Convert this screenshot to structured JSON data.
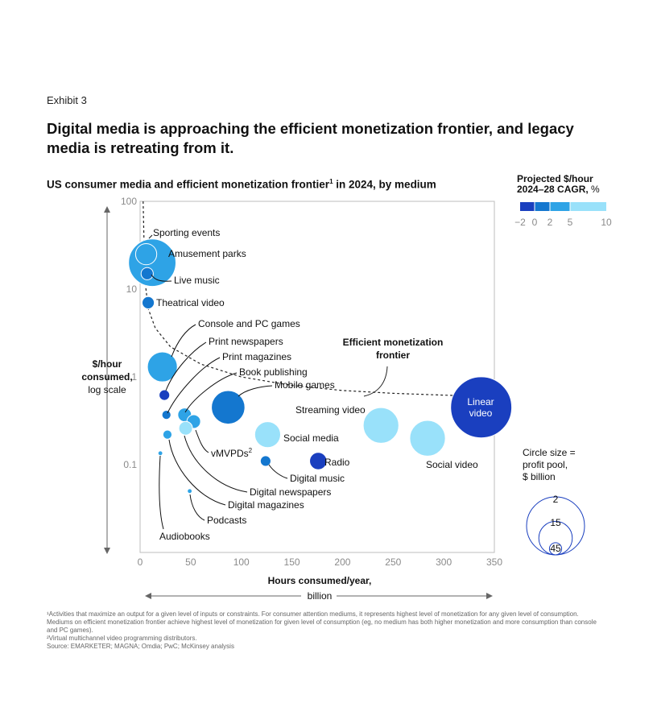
{
  "exhibit_label": "Exhibit 3",
  "headline": "Digital media is approaching the efficient monetization frontier, and legacy media is retreating from it.",
  "subtitle": "US consumer media and efficient monetization frontier",
  "subtitle_sup": "1",
  "subtitle_suffix": " in 2024, by medium",
  "legend": {
    "title_line1": "Projected $/hour",
    "title_line2": "2024–28 CAGR,",
    "title_unit": " %",
    "ticks": [
      "−2",
      "0",
      "2",
      "5",
      "10"
    ],
    "colors": [
      "#1a3fbf",
      "#1477cf",
      "#2ea3e6",
      "#99e1fa"
    ]
  },
  "size_legend": {
    "title_lines": [
      "Circle size =",
      "profit pool,",
      "$ billion"
    ],
    "values": [
      2,
      15,
      45
    ],
    "labels": [
      "2",
      "15",
      "45"
    ]
  },
  "chart_data": {
    "type": "scatter",
    "x_scale": "linear",
    "y_scale": "log",
    "xlim": [
      0,
      350
    ],
    "ylim": [
      0.01,
      100
    ],
    "x_ticks": [
      0,
      50,
      100,
      150,
      200,
      250,
      300,
      350
    ],
    "x_tick_labels": [
      "0",
      "50",
      "100",
      "150",
      "200",
      "250",
      "300",
      "350"
    ],
    "y_ticks": [
      100,
      10,
      1,
      0.1
    ],
    "y_tick_labels": [
      "100",
      "10",
      "1",
      "0.1"
    ],
    "ylabel_lines": [
      "$/hour",
      "consumed,",
      "log scale"
    ],
    "xlabel_lines": [
      "Hours consumed/year,",
      "billion"
    ],
    "grid": false,
    "frontier_label_lines": [
      "Efficient monetization",
      "frontier"
    ],
    "frontier": [
      [
        3,
        100
      ],
      [
        4,
        30
      ],
      [
        5,
        12
      ],
      [
        8,
        6
      ],
      [
        15,
        3.6
      ],
      [
        30,
        2.2
      ],
      [
        60,
        1.4
      ],
      [
        100,
        1.0
      ],
      [
        150,
        0.8
      ],
      [
        200,
        0.7
      ],
      [
        250,
        0.65
      ],
      [
        300,
        0.62
      ],
      [
        337,
        0.6
      ]
    ],
    "points": [
      {
        "name": "Sporting events",
        "x": 6,
        "y": 25,
        "size": 6,
        "cagr": 2
      },
      {
        "name": "Amusement parks",
        "x": 12,
        "y": 20,
        "size": 30,
        "cagr": 2
      },
      {
        "name": "Live music",
        "x": 7,
        "y": 15,
        "size": 2,
        "cagr": 0
      },
      {
        "name": "Theatrical video",
        "x": 8,
        "y": 7,
        "size": 2,
        "cagr": 0
      },
      {
        "name": "Console and PC games",
        "x": 22,
        "y": 1.3,
        "size": 12,
        "cagr": 2
      },
      {
        "name": "Print newspapers",
        "x": 24,
        "y": 0.62,
        "size": 1.5,
        "cagr": -2
      },
      {
        "name": "Print magazines",
        "x": 26,
        "y": 0.37,
        "size": 1.1,
        "cagr": 0
      },
      {
        "name": "Book publishing",
        "x": 44,
        "y": 0.37,
        "size": 2.5,
        "cagr": 2
      },
      {
        "name": "Mobile games",
        "x": 87,
        "y": 0.45,
        "size": 15,
        "cagr": 0
      },
      {
        "name": "vMVPDs",
        "x": 53,
        "y": 0.31,
        "size": 2.5,
        "cagr": 5
      },
      {
        "name": "Digital newspapers",
        "x": 45,
        "y": 0.26,
        "size": 2.5,
        "cagr": 10
      },
      {
        "name": "Digital magazines",
        "x": 27,
        "y": 0.22,
        "size": 1.1,
        "cagr": 5
      },
      {
        "name": "Audiobooks",
        "x": 20,
        "y": 0.135,
        "size": 0.3,
        "cagr": 5
      },
      {
        "name": "Podcasts",
        "x": 49,
        "y": 0.05,
        "size": 0.3,
        "cagr": 5
      },
      {
        "name": "Streaming video",
        "x": 238,
        "y": 0.28,
        "size": 17,
        "cagr": 10
      },
      {
        "name": "Social media",
        "x": 126,
        "y": 0.22,
        "size": 9,
        "cagr": 10
      },
      {
        "name": "Social video",
        "x": 284,
        "y": 0.2,
        "size": 17,
        "cagr": 10
      },
      {
        "name": "Linear video",
        "x": 337,
        "y": 0.45,
        "size": 50,
        "cagr": -2
      },
      {
        "name": "Digital music",
        "x": 124,
        "y": 0.11,
        "size": 1.5,
        "cagr": 0
      },
      {
        "name": "Radio",
        "x": 176,
        "y": 0.11,
        "size": 4,
        "cagr": -2
      }
    ],
    "labels": {
      "vMVPDs": {
        "text": "vMVPDs",
        "sup": "2"
      },
      "Linear video": {
        "lines": [
          "Linear",
          "video"
        ]
      }
    }
  },
  "footnotes": [
    "¹Activities that maximize an output for a given level of inputs or constraints. For consumer attention mediums, it represents highest level of monetization for any given level of consumption. Mediums on efficient monetization frontier achieve highest level of monetization for given level of consumption (eg, no medium has both higher monetization and more consumption than console and PC games).",
    "²Virtual multichannel video programming distributors.",
    "Source: EMARKETER; MAGNA; Omdia; PwC; McKinsey analysis"
  ]
}
